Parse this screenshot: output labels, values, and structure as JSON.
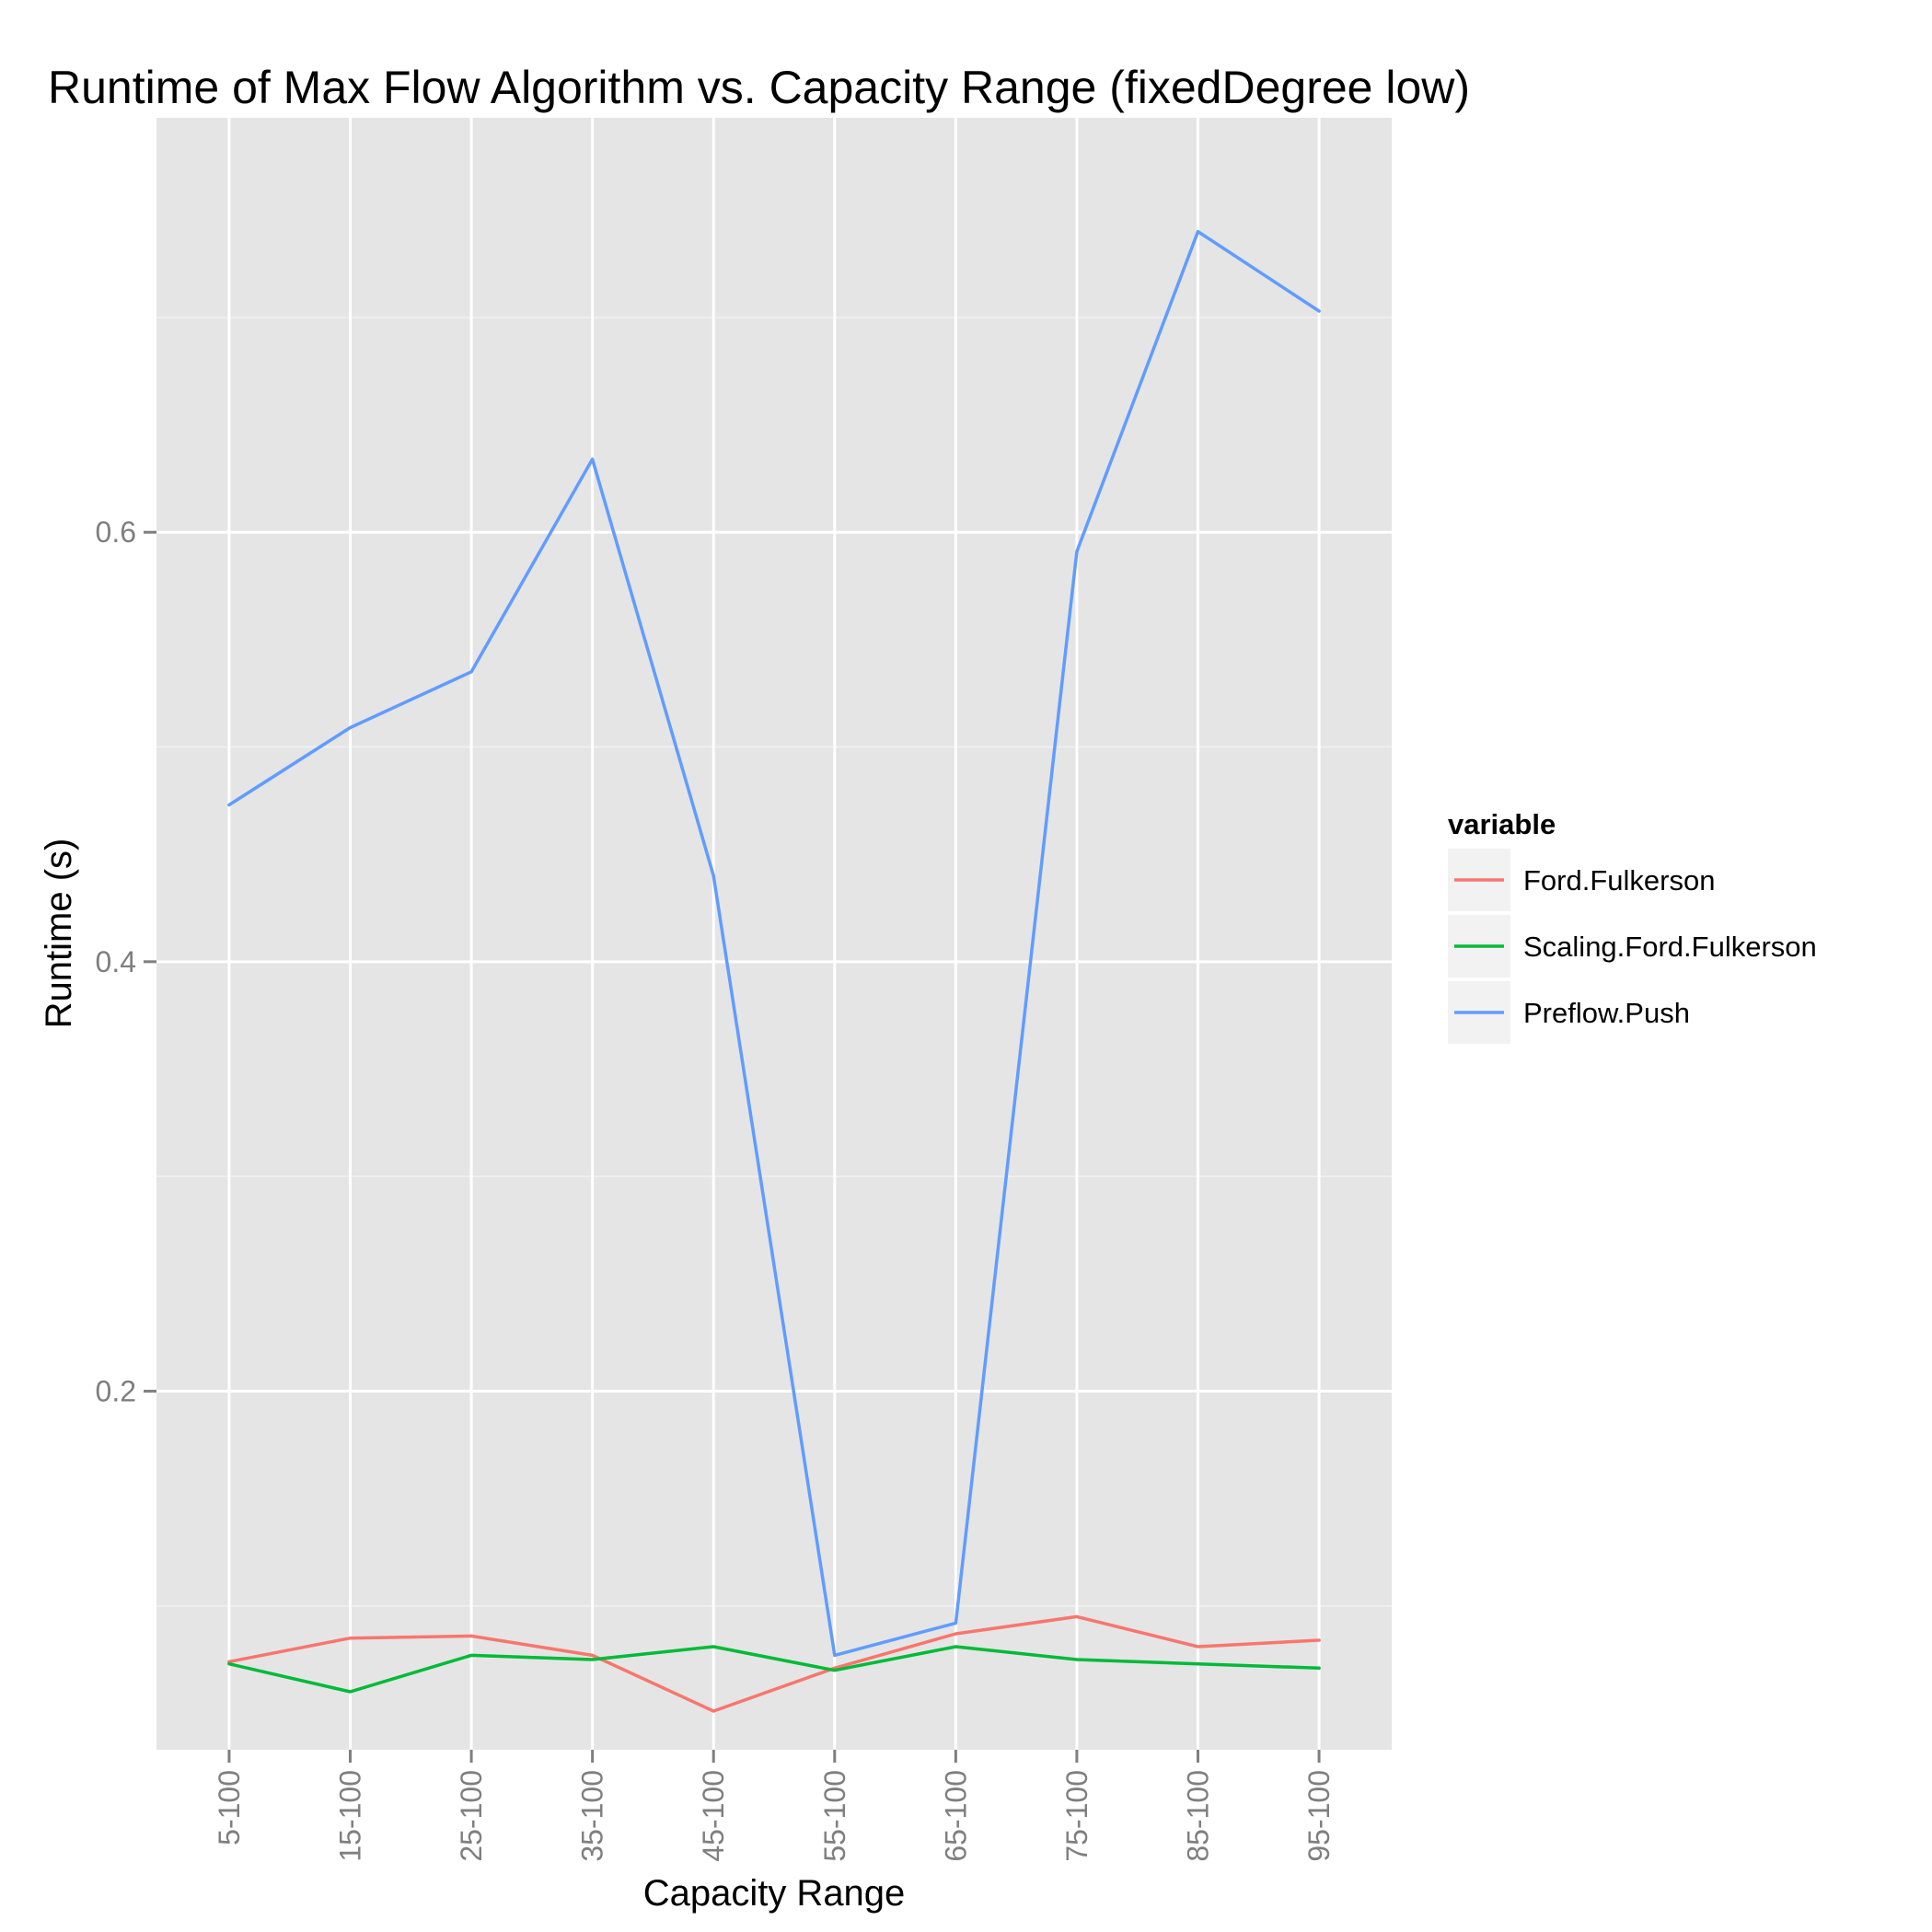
{
  "chart_data": {
    "type": "line",
    "title": "Runtime of Max Flow Algorithm vs. Capacity Range (fixedDegree low)",
    "xlabel": "Capacity Range",
    "ylabel": "Runtime (s)",
    "categories": [
      "5-100",
      "15-100",
      "25-100",
      "35-100",
      "45-100",
      "55-100",
      "65-100",
      "75-100",
      "85-100",
      "95-100"
    ],
    "ylim": [
      0.033,
      0.793
    ],
    "y_ticks": [
      0.2,
      0.4,
      0.6
    ],
    "y_tick_labels": [
      "0.2",
      "0.4",
      "0.6"
    ],
    "grid": true,
    "legend_position": "right",
    "legend_title": "variable",
    "series": [
      {
        "name": "Ford.Fulkerson",
        "color": "#F8766D",
        "values": [
          0.074,
          0.085,
          0.086,
          0.077,
          0.051,
          0.071,
          0.087,
          0.095,
          0.081,
          0.084
        ]
      },
      {
        "name": "Scaling.Ford.Fulkerson",
        "color": "#00BA38",
        "values": [
          0.073,
          0.06,
          0.077,
          0.075,
          0.081,
          0.07,
          0.081,
          0.075,
          0.073,
          0.071
        ]
      },
      {
        "name": "Preflow.Push",
        "color": "#619CFF",
        "values": [
          0.473,
          0.509,
          0.535,
          0.634,
          0.44,
          0.077,
          0.092,
          0.591,
          0.74,
          0.703
        ]
      }
    ]
  }
}
